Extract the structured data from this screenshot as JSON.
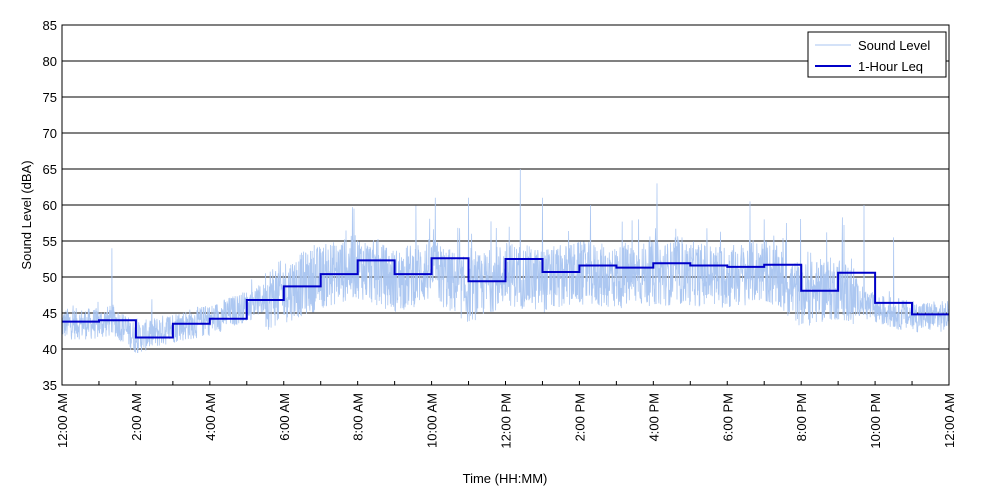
{
  "chart_data": {
    "type": "line",
    "xlabel": "Time (HH:MM)",
    "ylabel": "Sound Level (dBA)",
    "ylim": [
      35,
      85
    ],
    "yticks": [
      35,
      40,
      45,
      50,
      55,
      60,
      65,
      70,
      75,
      80,
      85
    ],
    "xlim_hours": [
      0,
      24
    ],
    "xtick_labels": [
      "12:00 AM",
      "2:00 AM",
      "4:00 AM",
      "6:00 AM",
      "8:00 AM",
      "10:00 AM",
      "12:00 PM",
      "2:00 PM",
      "4:00 PM",
      "6:00 PM",
      "8:00 PM",
      "10:00 PM",
      "12:00 AM"
    ],
    "grid": "horizontal",
    "legend_position": "top-right",
    "series": [
      {
        "name": "Sound Level",
        "style": "noisy line",
        "color": "#a8c4f0",
        "trend_hours": [
          0,
          1,
          1.4,
          2,
          3,
          4,
          5,
          6,
          7,
          8,
          9,
          10,
          11,
          12,
          13,
          14,
          15,
          16,
          17,
          18,
          19,
          20,
          21,
          22,
          23,
          24
        ],
        "trend_values": [
          43.5,
          43.5,
          44,
          41.5,
          43,
          44,
          46,
          48,
          50,
          51.5,
          49.5,
          51,
          48,
          50.5,
          49.5,
          50.5,
          50,
          50.5,
          50.5,
          50,
          51,
          47.5,
          48.5,
          45.5,
          44.5,
          44.5
        ],
        "peak_hours": [
          1.35,
          7.9,
          10.1,
          11.0,
          12.4,
          13.0,
          14.3,
          15.6,
          16.1,
          19.0,
          19.6,
          21.7,
          22.5
        ],
        "peak_values": [
          54,
          59.5,
          61,
          61,
          65,
          61,
          60,
          58,
          63,
          58,
          57.5,
          60,
          55.5
        ]
      },
      {
        "name": "1-Hour Leq",
        "style": "step",
        "color": "#0000c8",
        "hour_start": [
          0,
          1,
          2,
          3,
          4,
          5,
          6,
          7,
          8,
          9,
          10,
          11,
          12,
          13,
          14,
          15,
          16,
          17,
          18,
          19,
          20,
          21,
          22,
          23
        ],
        "values": [
          43.8,
          44.0,
          41.6,
          43.5,
          44.2,
          46.8,
          48.7,
          50.4,
          52.3,
          50.4,
          52.6,
          49.4,
          52.5,
          50.7,
          51.6,
          51.3,
          51.9,
          51.6,
          51.4,
          51.7,
          48.1,
          50.6,
          46.4,
          44.8
        ]
      }
    ]
  }
}
